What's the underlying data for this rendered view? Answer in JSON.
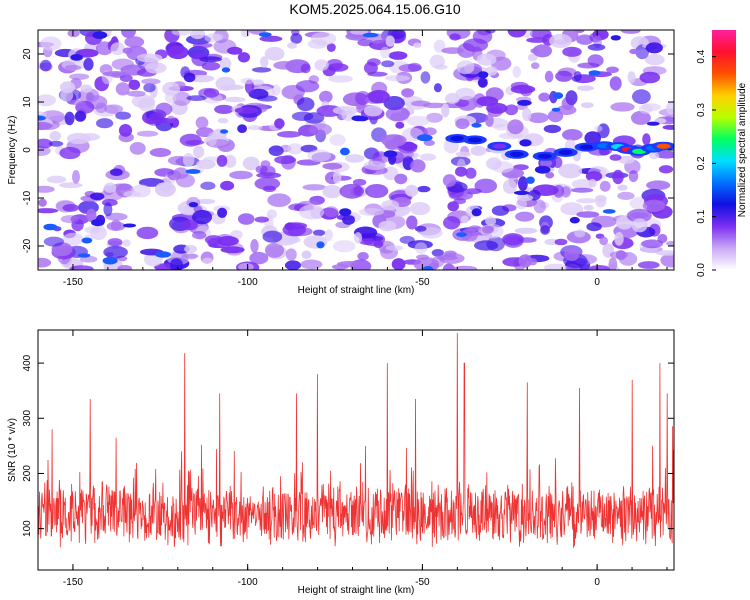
{
  "title": "KOM5.2025.064.15.06.G10",
  "colors": {
    "snr_line": "#ee3333",
    "spectrogram_palette": [
      "#ffffff",
      "#dccbf7",
      "#a66ef0",
      "#7b2ff0",
      "#3a12e6",
      "#0044ff",
      "#00d0ff",
      "#00ff66",
      "#d8ff00",
      "#ffb000",
      "#ff2020",
      "#ff1aa0"
    ]
  },
  "chart_data": [
    {
      "type": "heatmap",
      "name": "spectrogram",
      "xlabel": "Height of straight line (km)",
      "ylabel": "Frequency (Hz)",
      "xlim": [
        -160,
        22
      ],
      "ylim": [
        -25,
        25
      ],
      "xticks": [
        -150,
        -100,
        -50,
        0
      ],
      "yticks": [
        -20,
        -10,
        0,
        10,
        20
      ],
      "colorbar": {
        "label": "Normalized spectral amplitude",
        "range": [
          0.0,
          0.45
        ],
        "ticks": [
          0.0,
          0.1,
          0.2,
          0.3,
          0.4
        ],
        "tick_labels": [
          "0.0",
          "0.1",
          "0.2",
          "0.3",
          "0.4"
        ]
      },
      "signal_track": [
        {
          "x": -40,
          "y": 2.4,
          "value": 0.13
        },
        {
          "x": -35,
          "y": 2.1,
          "value": 0.11
        },
        {
          "x": -28,
          "y": 0.8,
          "value": 0.1
        },
        {
          "x": -23,
          "y": -0.9,
          "value": 0.11
        },
        {
          "x": -15,
          "y": -1.3,
          "value": 0.12
        },
        {
          "x": -9,
          "y": -0.5,
          "value": 0.11
        },
        {
          "x": -3,
          "y": 0.6,
          "value": 0.14
        },
        {
          "x": 2,
          "y": 0.9,
          "value": 0.16
        },
        {
          "x": 6,
          "y": 0.7,
          "value": 0.22
        },
        {
          "x": 9,
          "y": 0.1,
          "value": 0.41
        },
        {
          "x": 12,
          "y": -0.3,
          "value": 0.25
        },
        {
          "x": 16,
          "y": 0.4,
          "value": 0.18
        },
        {
          "x": 19,
          "y": 0.8,
          "value": 0.36
        }
      ]
    },
    {
      "type": "line",
      "name": "snr",
      "xlabel": "Height of straight line (km)",
      "ylabel": "SNR (10 * v/v)",
      "xlim": [
        -160,
        22
      ],
      "ylim": [
        25,
        460
      ],
      "xticks": [
        -150,
        -100,
        -50,
        0
      ],
      "yticks": [
        100,
        200,
        300,
        400
      ],
      "baseline": 125,
      "spread": 48,
      "peaks": [
        {
          "x": -156,
          "y": 280
        },
        {
          "x": -145,
          "y": 335
        },
        {
          "x": -118,
          "y": 418
        },
        {
          "x": -108,
          "y": 345
        },
        {
          "x": -86,
          "y": 345
        },
        {
          "x": -80,
          "y": 380
        },
        {
          "x": -60,
          "y": 400
        },
        {
          "x": -52,
          "y": 335
        },
        {
          "x": -40,
          "y": 455
        },
        {
          "x": -38,
          "y": 400
        },
        {
          "x": -20,
          "y": 365
        },
        {
          "x": -5,
          "y": 355
        },
        {
          "x": 10,
          "y": 370
        },
        {
          "x": 18,
          "y": 400
        },
        {
          "x": 20,
          "y": 345
        }
      ]
    }
  ]
}
